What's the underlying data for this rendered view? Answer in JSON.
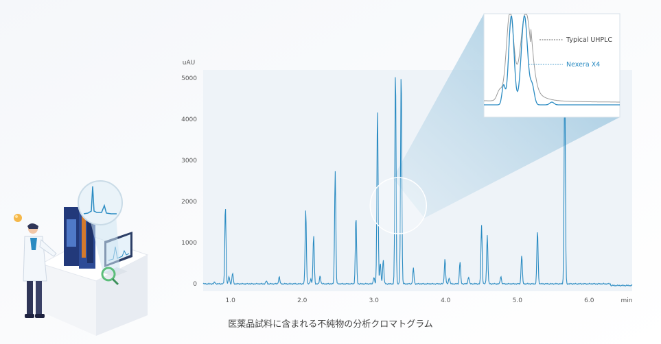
{
  "colors": {
    "page_bg": "#ffffff",
    "plot_bg": "#eef3f8",
    "signal": "#2a8bc2",
    "reference": "#9a9a9a",
    "nexera_label": "#2a8bc2",
    "typical_label": "#444444",
    "axis_text": "#555555",
    "zoom_wedge": "#a7cee4"
  },
  "illustration": {
    "name": "Scientist at HPLC system workstation"
  },
  "chart_data": {
    "type": "line",
    "title": "",
    "xlabel": "min",
    "ylabel": "uAU",
    "xlim": [
      0.62,
      6.6
    ],
    "ylim": [
      -180,
      5200
    ],
    "x_ticks": [
      1.0,
      2.0,
      3.0,
      4.0,
      5.0,
      6.0
    ],
    "y_ticks": [
      0,
      1000,
      2000,
      3000,
      4000,
      5000
    ],
    "series": [
      {
        "name": "",
        "peaks": [
          {
            "x": 0.78,
            "y": 40
          },
          {
            "x": 0.93,
            "y": 1900
          },
          {
            "x": 0.98,
            "y": 180
          },
          {
            "x": 1.03,
            "y": 260
          },
          {
            "x": 1.5,
            "y": 70
          },
          {
            "x": 1.68,
            "y": 170
          },
          {
            "x": 2.05,
            "y": 1800
          },
          {
            "x": 2.12,
            "y": 120
          },
          {
            "x": 2.16,
            "y": 1180
          },
          {
            "x": 2.25,
            "y": 190
          },
          {
            "x": 2.46,
            "y": 2750
          },
          {
            "x": 2.75,
            "y": 1640
          },
          {
            "x": 3.0,
            "y": 160
          },
          {
            "x": 3.05,
            "y": 4270
          },
          {
            "x": 3.09,
            "y": 500
          },
          {
            "x": 3.13,
            "y": 580
          },
          {
            "x": 3.3,
            "y": 5200
          },
          {
            "x": 3.38,
            "y": 5200
          },
          {
            "x": 3.55,
            "y": 380
          },
          {
            "x": 3.99,
            "y": 600
          },
          {
            "x": 4.05,
            "y": 150
          },
          {
            "x": 4.2,
            "y": 540
          },
          {
            "x": 4.32,
            "y": 170
          },
          {
            "x": 4.5,
            "y": 1430
          },
          {
            "x": 4.58,
            "y": 1180
          },
          {
            "x": 4.77,
            "y": 180
          },
          {
            "x": 5.06,
            "y": 700
          },
          {
            "x": 5.28,
            "y": 1300
          },
          {
            "x": 5.66,
            "y": 5200
          }
        ]
      }
    ],
    "inset": {
      "series": [
        {
          "name": "Typical UHPLC"
        },
        {
          "name": "Nexera X4"
        }
      ]
    },
    "caption": "医薬品試料に含まれる不純物の分析クロマトグラム"
  }
}
